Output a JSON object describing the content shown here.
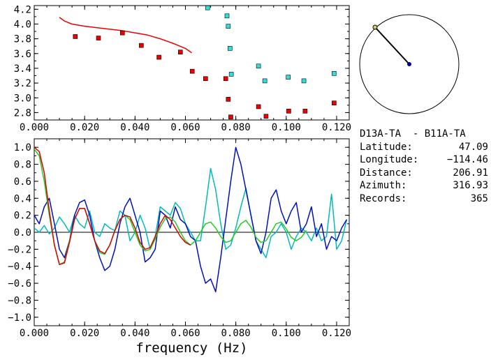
{
  "chart_data": [
    {
      "type": "scatter",
      "xlim": [
        0.0,
        0.125
      ],
      "ylim": [
        2.7,
        4.25
      ],
      "xticks": [
        "0.000",
        "0.020",
        "0.040",
        "0.060",
        "0.080",
        "0.100",
        "0.120"
      ],
      "yticks": [
        "4.2",
        "4.0",
        "3.8",
        "3.6",
        "3.4",
        "3.2",
        "3.0",
        "2.8"
      ],
      "grid": false,
      "series": [
        {
          "kind": "line",
          "color": "#ee0000",
          "x": [
            0.01,
            0.012,
            0.015,
            0.02,
            0.025,
            0.03,
            0.035,
            0.04,
            0.045,
            0.05,
            0.055,
            0.06,
            0.0625
          ],
          "y": [
            4.09,
            4.04,
            4.0,
            3.97,
            3.95,
            3.93,
            3.91,
            3.88,
            3.85,
            3.8,
            3.74,
            3.67,
            3.61
          ]
        },
        {
          "kind": "points",
          "color": "#ee0000",
          "x": [
            0.0163,
            0.0255,
            0.035,
            0.0425,
            0.0495,
            0.058,
            0.0627,
            0.068,
            0.076,
            0.077,
            0.078,
            0.089,
            0.092,
            0.101,
            0.1075,
            0.119
          ],
          "y": [
            3.83,
            3.81,
            3.88,
            3.71,
            3.55,
            3.62,
            3.36,
            3.26,
            3.26,
            2.98,
            2.74,
            2.88,
            2.75,
            2.82,
            2.82,
            2.93
          ]
        },
        {
          "kind": "points",
          "color": "#33dddd",
          "x": [
            0.0688,
            0.0765,
            0.077,
            0.0777,
            0.0782,
            0.089,
            0.0915,
            0.1008,
            0.107,
            0.119
          ],
          "y": [
            4.22,
            4.11,
            3.97,
            3.67,
            3.32,
            3.43,
            3.23,
            3.28,
            3.23,
            3.33
          ]
        }
      ]
    },
    {
      "type": "line",
      "xlim": [
        0.0,
        0.125
      ],
      "ylim": [
        -1.1,
        1.1
      ],
      "xticks": [
        "0.000",
        "0.020",
        "0.040",
        "0.060",
        "0.080",
        "0.100",
        "0.120"
      ],
      "yticks": [
        "1.0",
        "0.8",
        "0.6",
        "0.4",
        "0.2",
        "0.0",
        "−0.2",
        "−0.4",
        "−0.6",
        "−0.8",
        "−1.0"
      ],
      "xlabel": "frequency (Hz)",
      "grid": false,
      "series": [
        {
          "color": "#00bbbb",
          "x": [
            0.0,
            0.002,
            0.004,
            0.006,
            0.008,
            0.01,
            0.012,
            0.014,
            0.016,
            0.018,
            0.02,
            0.022,
            0.024,
            0.026,
            0.028,
            0.03,
            0.032,
            0.034,
            0.036,
            0.038,
            0.04,
            0.042,
            0.044,
            0.046,
            0.048,
            0.05,
            0.052,
            0.054,
            0.056,
            0.058,
            0.06,
            0.062,
            0.064,
            0.066,
            0.068,
            0.07,
            0.072,
            0.074,
            0.076,
            0.078,
            0.08,
            0.082,
            0.084,
            0.086,
            0.088,
            0.09,
            0.092,
            0.094,
            0.096,
            0.098,
            0.1,
            0.102,
            0.104,
            0.106,
            0.108,
            0.11,
            0.112,
            0.114,
            0.116,
            0.118,
            0.12,
            0.122,
            0.124
          ],
          "y": [
            0.05,
            0.0,
            0.08,
            -0.02,
            0.05,
            0.18,
            0.1,
            0.0,
            0.2,
            0.1,
            0.05,
            0.25,
            0.0,
            -0.05,
            0.1,
            0.05,
            0.02,
            0.25,
            0.2,
            -0.1,
            0.0,
            0.2,
            0.05,
            -0.2,
            -0.05,
            0.3,
            0.25,
            0.2,
            0.35,
            0.28,
            0.1,
            0.0,
            -0.1,
            -0.1,
            0.3,
            0.75,
            0.5,
            0.1,
            -0.2,
            -0.15,
            0.05,
            0.3,
            0.52,
            0.2,
            -0.1,
            -0.2,
            -0.3,
            -0.05,
            0.0,
            0.1,
            0.0,
            -0.2,
            -0.05,
            0.05,
            0.0,
            -0.1,
            0.05,
            -0.1,
            -0.05,
            0.45,
            -0.2,
            -0.1,
            0.15
          ]
        },
        {
          "color": "#0011bb",
          "x": [
            0.0,
            0.002,
            0.004,
            0.006,
            0.008,
            0.01,
            0.012,
            0.014,
            0.016,
            0.018,
            0.02,
            0.022,
            0.024,
            0.026,
            0.028,
            0.03,
            0.032,
            0.034,
            0.036,
            0.038,
            0.04,
            0.042,
            0.044,
            0.046,
            0.048,
            0.05,
            0.052,
            0.054,
            0.056,
            0.058,
            0.06,
            0.062,
            0.064,
            0.066,
            0.068,
            0.07,
            0.072,
            0.074,
            0.076,
            0.078,
            0.08,
            0.082,
            0.084,
            0.086,
            0.088,
            0.09,
            0.092,
            0.094,
            0.096,
            0.098,
            0.1,
            0.102,
            0.104,
            0.106,
            0.108,
            0.11,
            0.112,
            0.114,
            0.116,
            0.118,
            0.12,
            0.122,
            0.124
          ],
          "y": [
            0.2,
            0.1,
            0.3,
            0.4,
            0.1,
            -0.2,
            -0.3,
            -0.1,
            0.2,
            0.35,
            0.38,
            0.2,
            -0.1,
            -0.3,
            -0.45,
            -0.4,
            -0.2,
            0.1,
            0.3,
            0.4,
            0.2,
            0.0,
            -0.35,
            -0.3,
            -0.2,
            0.25,
            0.2,
            0.05,
            0.3,
            0.15,
            0.1,
            -0.05,
            -0.1,
            -0.4,
            -0.6,
            -0.55,
            -0.7,
            -0.3,
            0.15,
            0.6,
            1.0,
            0.8,
            0.5,
            0.2,
            -0.1,
            -0.25,
            0.0,
            0.4,
            0.5,
            0.25,
            0.1,
            0.25,
            0.35,
            0.0,
            0.1,
            0.3,
            -0.05,
            0.1,
            -0.2,
            -0.05,
            -0.1,
            0.05,
            0.15
          ]
        },
        {
          "color": "#22cc22",
          "x": [
            0.0,
            0.002,
            0.004,
            0.006,
            0.008,
            0.01,
            0.012,
            0.014,
            0.016,
            0.018,
            0.02,
            0.022,
            0.024,
            0.026,
            0.028,
            0.03,
            0.032,
            0.034,
            0.036,
            0.038,
            0.04,
            0.042,
            0.044,
            0.046,
            0.048,
            0.05,
            0.052,
            0.054,
            0.056,
            0.058,
            0.06,
            0.062,
            0.064,
            0.066,
            0.068,
            0.07,
            0.072,
            0.074,
            0.076,
            0.078,
            0.08,
            0.082,
            0.084,
            0.086,
            0.088,
            0.09,
            0.092,
            0.094,
            0.096,
            0.098,
            0.1,
            0.102,
            0.104,
            0.106,
            0.108
          ],
          "y": [
            0.98,
            0.9,
            0.6,
            0.2,
            -0.15,
            -0.38,
            -0.35,
            -0.1,
            0.15,
            0.28,
            0.28,
            0.1,
            -0.1,
            -0.24,
            -0.26,
            -0.15,
            0.02,
            0.15,
            0.2,
            0.15,
            0.0,
            -0.15,
            -0.22,
            -0.2,
            -0.08,
            0.06,
            0.16,
            0.18,
            0.12,
            0.0,
            -0.1,
            -0.15,
            -0.1,
            0.0,
            0.1,
            0.12,
            0.05,
            -0.05,
            -0.12,
            -0.1,
            0.0,
            0.1,
            0.14,
            0.06,
            -0.06,
            -0.12,
            -0.1,
            0.0,
            0.1,
            0.12,
            0.04,
            -0.06,
            -0.1,
            -0.06,
            0.02
          ]
        },
        {
          "color": "#dd0000",
          "x": [
            0.0,
            0.002,
            0.004,
            0.006,
            0.008,
            0.01,
            0.012,
            0.014,
            0.016,
            0.018,
            0.02,
            0.022,
            0.024,
            0.026,
            0.028,
            0.03,
            0.032,
            0.034,
            0.036,
            0.038,
            0.04,
            0.042,
            0.044,
            0.046,
            0.048,
            0.05,
            0.052,
            0.054,
            0.056,
            0.058,
            0.06,
            0.062
          ],
          "y": [
            1.0,
            0.95,
            0.7,
            0.25,
            -0.15,
            -0.38,
            -0.36,
            -0.12,
            0.15,
            0.28,
            0.28,
            0.1,
            -0.1,
            -0.22,
            -0.25,
            -0.15,
            0.02,
            0.15,
            0.2,
            0.18,
            0.05,
            -0.12,
            -0.2,
            -0.18,
            -0.05,
            0.1,
            0.2,
            0.15,
            0.05,
            -0.05,
            -0.12,
            -0.15
          ]
        }
      ]
    }
  ],
  "map": {
    "marker_colors": [
      "#ddcc66",
      "#000099"
    ]
  },
  "info": {
    "pair": "D13A-TA  - B11A-TA",
    "rows": [
      {
        "key": "Latitude:",
        "value": "47.09"
      },
      {
        "key": "Longitude:",
        "value": "−114.46"
      },
      {
        "key": "Distance:",
        "value": "206.91"
      },
      {
        "key": "Azimuth:",
        "value": "316.93"
      },
      {
        "key": "Records:",
        "value": "365"
      }
    ]
  }
}
